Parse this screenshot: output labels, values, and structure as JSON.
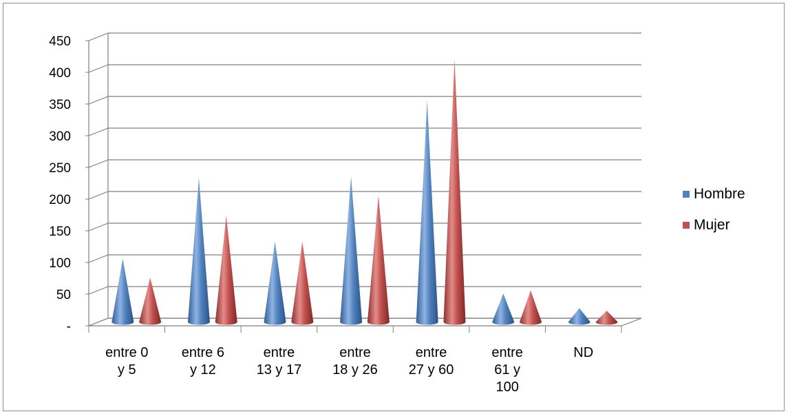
{
  "chart_data": {
    "type": "bar",
    "subtype": "3d-cone",
    "categories": [
      [
        "entre 0",
        "y 5"
      ],
      [
        "entre 6",
        "y 12"
      ],
      [
        "entre",
        "13 y 17"
      ],
      [
        "entre",
        "18 y 26"
      ],
      [
        "entre",
        "27 y 60"
      ],
      [
        "entre",
        "61 y",
        "100"
      ],
      [
        "ND"
      ]
    ],
    "series": [
      {
        "name": "Hombre",
        "color": "#4f81bd",
        "values": [
          100,
          228,
          127,
          230,
          350,
          45,
          22
        ]
      },
      {
        "name": "Mujer",
        "color": "#c0504d",
        "values": [
          70,
          168,
          127,
          200,
          415,
          50,
          18
        ]
      }
    ],
    "ylim": [
      0,
      450
    ],
    "yticks": [
      0,
      50,
      100,
      150,
      200,
      250,
      300,
      350,
      400,
      450
    ],
    "ytick_labels": [
      "-",
      "50",
      "100",
      "150",
      "200",
      "250",
      "300",
      "350",
      "400",
      "450"
    ],
    "grid": true,
    "legend_position": "right"
  }
}
